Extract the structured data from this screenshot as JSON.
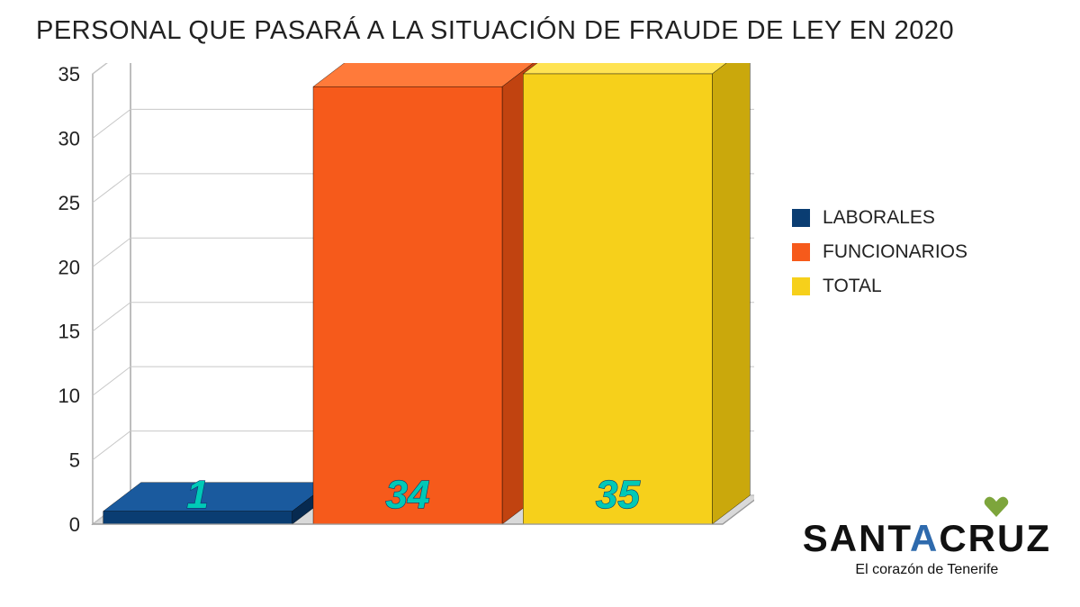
{
  "title": "PERSONAL QUE PASARÁ A LA SITUACIÓN DE FRAUDE DE LEY EN 2020",
  "chart": {
    "type": "bar3d",
    "background_color": "#ffffff",
    "floor_color": "#d9d9d9",
    "wall_color": "#ffffff",
    "grid_color": "#c8c8c8",
    "border_color": "#9a9a9a",
    "ylim": [
      0,
      35
    ],
    "ytick_step": 5,
    "ytick_labels": [
      "0",
      "5",
      "10",
      "15",
      "20",
      "25",
      "30",
      "35"
    ],
    "ytick_fontsize": 22,
    "ytick_color": "#222222",
    "bar_width": 0.9,
    "value_label_fontsize": 44,
    "value_label_color": "#00c9b7",
    "value_label_outline": "#083a6b",
    "series": [
      {
        "name": "LABORALES",
        "value": 1,
        "color": "#0a3d72",
        "color_side": "#072a50",
        "color_top": "#1a5a9e"
      },
      {
        "name": "FUNCIONARIOS",
        "value": 34,
        "color": "#f65a1b",
        "color_side": "#c14310",
        "color_top": "#ff7a3a"
      },
      {
        "name": "TOTAL",
        "value": 35,
        "color": "#f6d01b",
        "color_side": "#caa80c",
        "color_top": "#ffe352"
      }
    ]
  },
  "legend": {
    "items": [
      {
        "label": "LABORALES",
        "color": "#0a3d72"
      },
      {
        "label": "FUNCIONARIOS",
        "color": "#f65a1b"
      },
      {
        "label": "TOTAL",
        "color": "#f6d01b"
      }
    ],
    "fontsize": 21,
    "text_color": "#222222"
  },
  "logo": {
    "word": "SANTACRUZ",
    "letter_a_color": "#2e6aad",
    "heart_color": "#7da53c",
    "subtitle": "El corazón de Tenerife"
  }
}
